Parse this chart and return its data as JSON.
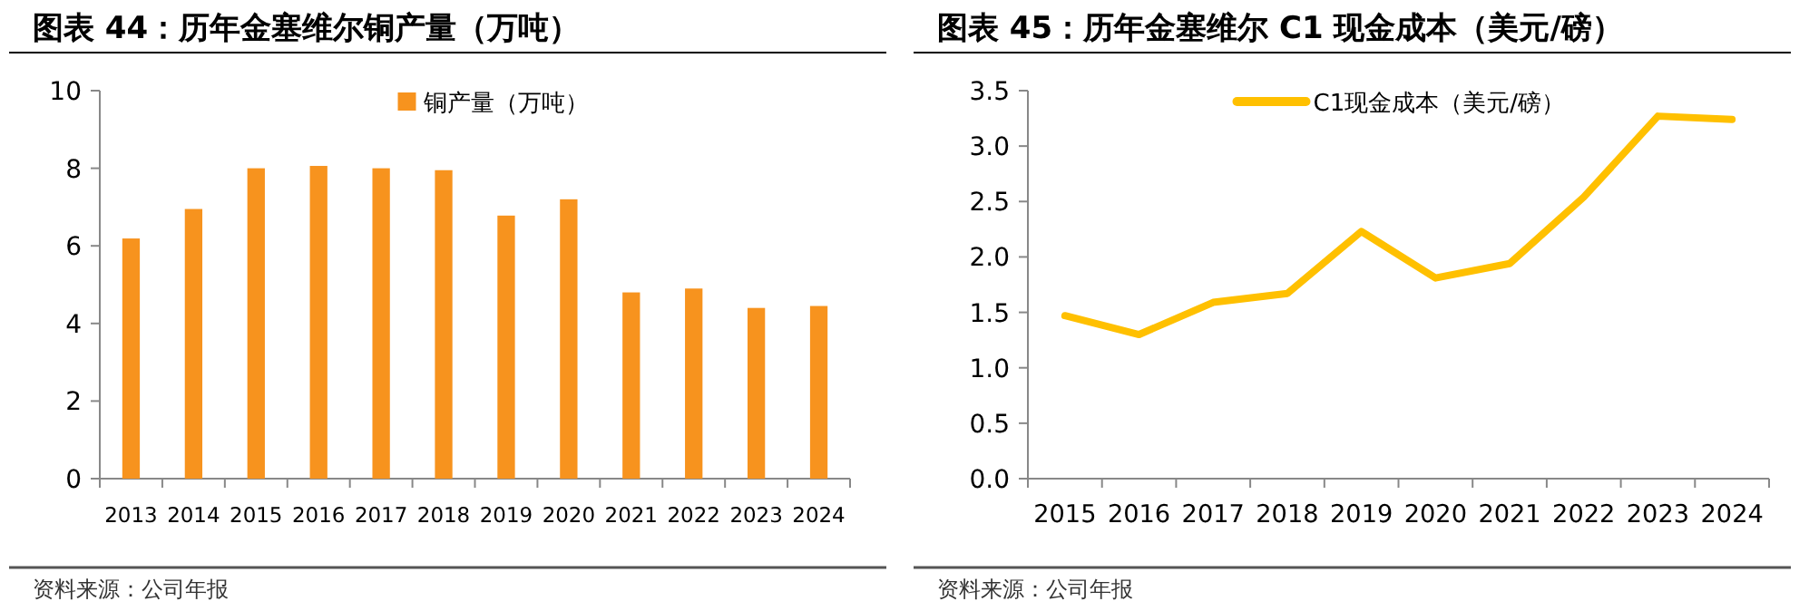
{
  "chart_data": [
    {
      "type": "bar",
      "title": "图表 44：历年金塞维尔铜产量（万吨）",
      "categories": [
        "2013",
        "2014",
        "2015",
        "2016",
        "2017",
        "2018",
        "2019",
        "2020",
        "2021",
        "2022",
        "2023",
        "2024"
      ],
      "series": [
        {
          "name": "铜产量（万吨）",
          "color": "#f7931e",
          "values": [
            6.19,
            6.95,
            8.0,
            8.06,
            8.0,
            7.95,
            6.78,
            7.2,
            4.8,
            4.9,
            4.4,
            4.45
          ]
        }
      ],
      "ylim": [
        0,
        10
      ],
      "yticks": [
        0,
        2,
        4,
        6,
        8,
        10
      ],
      "legend": "top",
      "annotations": [
        "资料来源：公司年报"
      ]
    },
    {
      "type": "line",
      "title": "图表 45：历年金塞维尔 C1 现金成本（美元/磅）",
      "categories": [
        "2015",
        "2016",
        "2017",
        "2018",
        "2019",
        "2020",
        "2021",
        "2022",
        "2023",
        "2024"
      ],
      "series": [
        {
          "name": "C1现金成本（美元/磅）",
          "color": "#ffc000",
          "values": [
            1.47,
            1.3,
            1.59,
            1.67,
            2.23,
            1.81,
            1.94,
            2.54,
            3.27,
            3.24
          ]
        }
      ],
      "ylim": [
        0,
        3.5
      ],
      "yticks": [
        {
          "value": 0,
          "label": "0.0"
        },
        {
          "value": 0.5,
          "label": "0.5"
        },
        {
          "value": 1,
          "label": "1.0"
        },
        {
          "value": 1.5,
          "label": "1.5"
        },
        {
          "value": 2,
          "label": "2.0"
        },
        {
          "value": 2.5,
          "label": "2.5"
        },
        {
          "value": 3,
          "label": "3.0"
        },
        {
          "value": 3.5,
          "label": "3.5"
        }
      ],
      "legend": "top",
      "marker": "none",
      "annotations": [
        "资料来源：公司年报"
      ]
    }
  ]
}
